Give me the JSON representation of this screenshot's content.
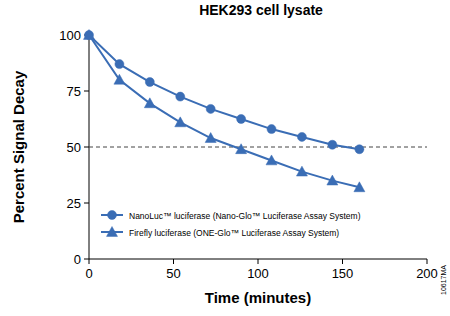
{
  "chart_data": {
    "type": "line",
    "title": "HEK293 cell lysate",
    "x_label": "Time (minutes)",
    "y_label": "Percent Signal Decay",
    "annotation": "10617MA",
    "x": [
      0,
      18,
      36,
      54,
      72,
      90,
      108,
      126,
      144,
      160
    ],
    "series": [
      {
        "name": "NanoLuc™ luciferase (Nano-Glo™ Luciferase Assay System)",
        "color": "#3a6db5",
        "marker": "circle",
        "line_style": "solid",
        "values": [
          100,
          87,
          79,
          72.5,
          67,
          62.5,
          58,
          54.5,
          51,
          49
        ]
      },
      {
        "name": "Firefly luciferase (ONE-Glo™ Luciferase Assay System)",
        "color": "#3a6db5",
        "marker": "triangle",
        "line_style": "solid",
        "values": [
          100,
          80,
          69.5,
          61,
          54,
          49,
          44,
          39,
          35,
          32
        ]
      }
    ],
    "reference_lines": [
      50
    ],
    "xlim": [
      0,
      200
    ],
    "xticks": [
      0,
      50,
      100,
      150,
      200
    ],
    "ylim": [
      0,
      100
    ],
    "yticks": [
      0,
      25,
      50,
      75,
      100
    ],
    "grid": false,
    "legend": "lower left"
  }
}
